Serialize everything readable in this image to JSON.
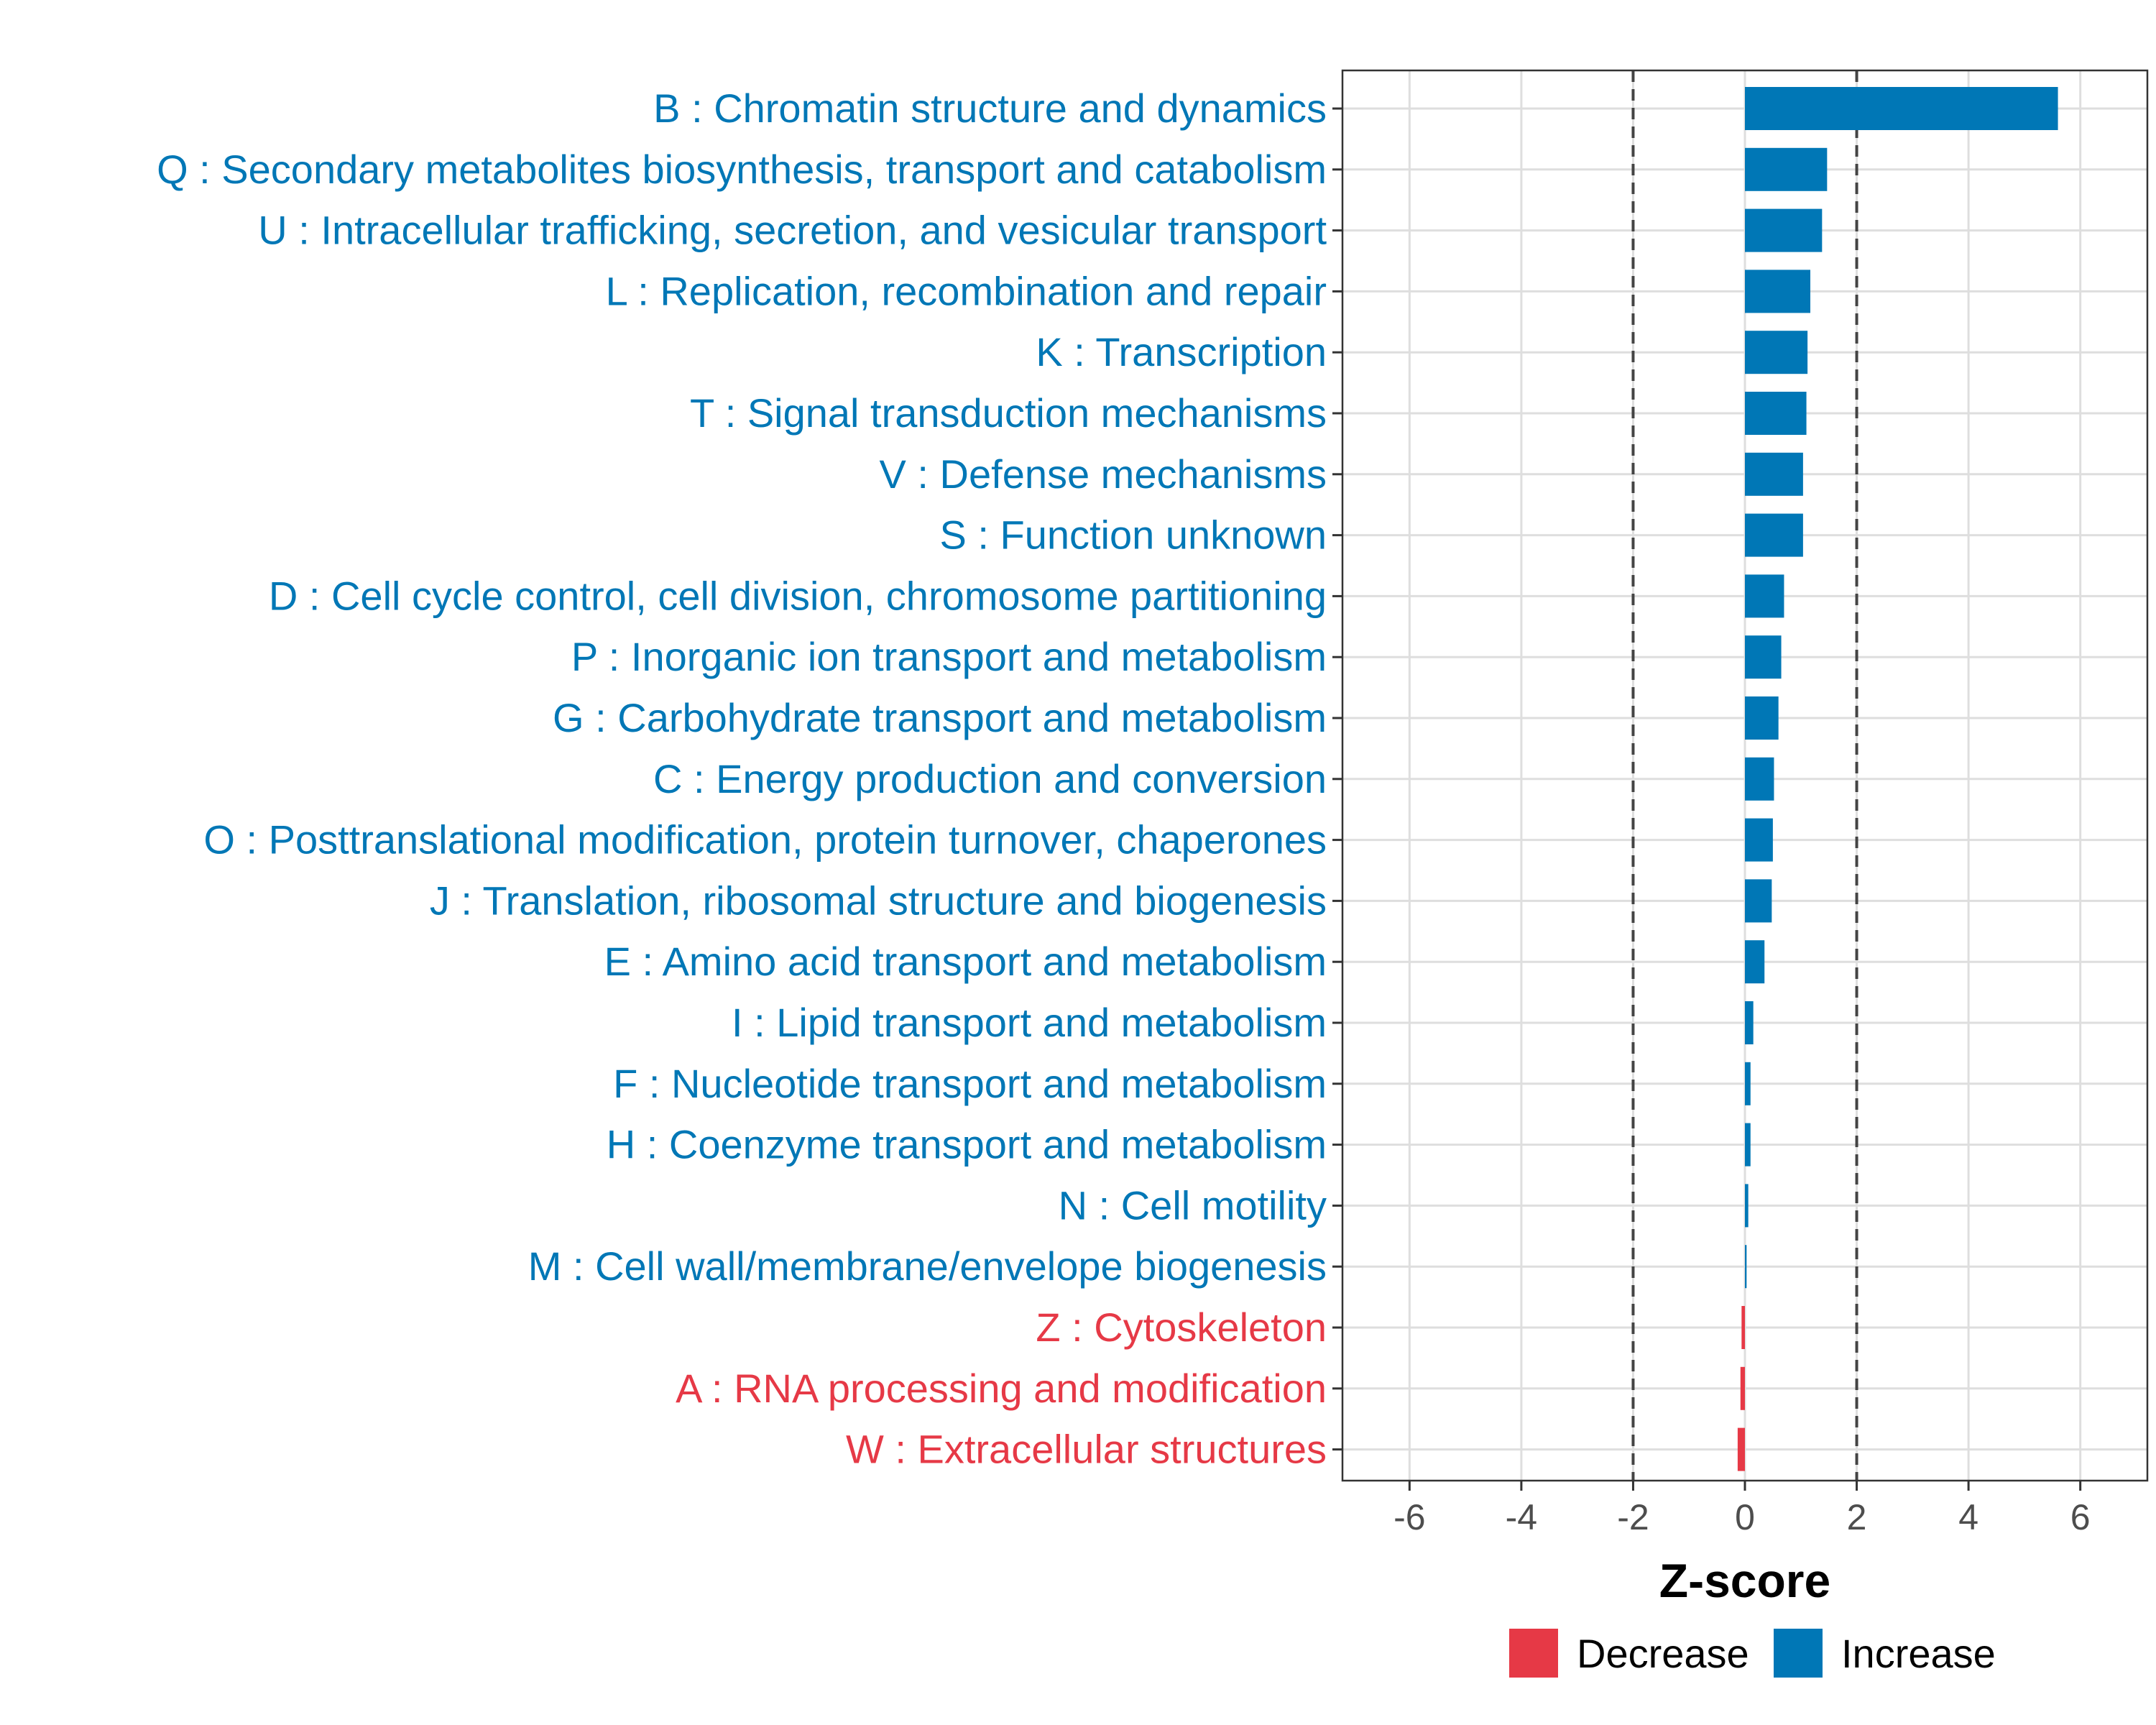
{
  "chart_data": {
    "type": "bar",
    "orientation": "horizontal",
    "xlabel": "Z-score",
    "ylabel": "",
    "xlim": [
      -7.2,
      7.2
    ],
    "x_ticks": [
      -6,
      -4,
      -2,
      0,
      2,
      4,
      6
    ],
    "x_tick_labels": [
      "-6",
      "-4",
      "-2",
      "0",
      "2",
      "4",
      "6"
    ],
    "reference_lines": [
      -2,
      2
    ],
    "grid": true,
    "colors": {
      "Decrease": "#e63946",
      "Increase": "#0077b6"
    },
    "legend": {
      "position": "bottom",
      "entries": [
        "Decrease",
        "Increase"
      ]
    },
    "categories": [
      "B : Chromatin structure and dynamics",
      "Q : Secondary metabolites biosynthesis, transport and catabolism",
      "U : Intracellular trafficking, secretion, and vesicular transport",
      "L : Replication, recombination and repair",
      "K : Transcription",
      "T : Signal transduction mechanisms",
      "V : Defense mechanisms",
      "S : Function unknown",
      "D : Cell cycle control, cell division, chromosome partitioning",
      "P : Inorganic ion transport and metabolism",
      "G : Carbohydrate transport and metabolism",
      "C : Energy production and conversion",
      "O : Posttranslational modification, protein turnover, chaperones",
      "J : Translation, ribosomal structure and biogenesis",
      "E : Amino acid transport and metabolism",
      "I : Lipid transport and metabolism",
      "F : Nucleotide transport and metabolism",
      "H : Coenzyme transport and metabolism",
      "N : Cell motility",
      "M : Cell wall/membrane/envelope biogenesis",
      "Z : Cytoskeleton",
      "A : RNA processing and modification",
      "W : Extracellular structures"
    ],
    "values": [
      5.6,
      1.47,
      1.38,
      1.17,
      1.12,
      1.1,
      1.04,
      1.04,
      0.7,
      0.65,
      0.6,
      0.52,
      0.5,
      0.48,
      0.35,
      0.15,
      0.1,
      0.1,
      0.06,
      0.03,
      -0.06,
      -0.08,
      -0.13
    ],
    "groups": [
      "Increase",
      "Increase",
      "Increase",
      "Increase",
      "Increase",
      "Increase",
      "Increase",
      "Increase",
      "Increase",
      "Increase",
      "Increase",
      "Increase",
      "Increase",
      "Increase",
      "Increase",
      "Increase",
      "Increase",
      "Increase",
      "Increase",
      "Increase",
      "Decrease",
      "Decrease",
      "Decrease"
    ]
  }
}
